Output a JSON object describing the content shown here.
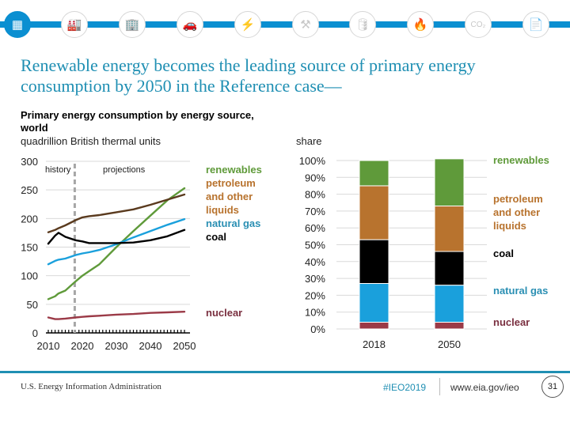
{
  "nav": {
    "icons": [
      {
        "name": "overview-icon",
        "glyph": "▦",
        "active": true
      },
      {
        "name": "industry-icon",
        "glyph": "🏭",
        "active": false
      },
      {
        "name": "buildings-icon",
        "glyph": "🏢",
        "active": false
      },
      {
        "name": "transportation-icon",
        "glyph": "🚗",
        "active": false
      },
      {
        "name": "electricity-icon",
        "glyph": "⚡",
        "active": false
      },
      {
        "name": "coal-mining-icon",
        "glyph": "⚒",
        "active": false
      },
      {
        "name": "petroleum-barrel-icon",
        "glyph": "🛢",
        "active": false
      },
      {
        "name": "natural-gas-flame-icon",
        "glyph": "🔥",
        "active": false
      },
      {
        "name": "co2-emissions-icon",
        "glyph": "CO₂",
        "active": false
      },
      {
        "name": "documents-icon",
        "glyph": "📄",
        "active": false
      }
    ]
  },
  "headline": "Renewable energy becomes the leading source of primary energy consumption by 2050 in the Reference case—",
  "colors": {
    "renewables": "#5f9a3a",
    "petroleum": "#b8732e",
    "petroleum_line": "#5a3a1e",
    "coal": "#000000",
    "natural_gas": "#1aa0dc",
    "natural_gas_label": "#2a8fb3",
    "nuclear": "#9b3a47",
    "nuclear_label": "#7a3040",
    "accent": "#1f8fb3"
  },
  "chart_data": [
    {
      "type": "line",
      "title": "Primary energy consumption by energy source, world",
      "ylabel": "quadrillion British thermal units",
      "xlabel": "",
      "xlim": [
        2010,
        2050
      ],
      "ylim": [
        0,
        300
      ],
      "yticks": [
        "0",
        "50",
        "100",
        "150",
        "200",
        "250",
        "300"
      ],
      "yticks_values": [
        0,
        50,
        100,
        150,
        200,
        250,
        300
      ],
      "xticks": [
        "2010",
        "2020",
        "2030",
        "2040",
        "2050"
      ],
      "xticks_values": [
        2010,
        2020,
        2030,
        2040,
        2050
      ],
      "grid": true,
      "history_divider_year": 2018,
      "annotations": [
        "history",
        "projections"
      ],
      "x": [
        2010,
        2012,
        2013,
        2015,
        2018,
        2020,
        2022,
        2025,
        2030,
        2035,
        2040,
        2045,
        2050
      ],
      "series": [
        {
          "name": "renewables",
          "key": "renewables",
          "values": [
            59,
            64,
            69,
            74,
            90,
            100,
            108,
            120,
            150,
            178,
            205,
            232,
            253
          ]
        },
        {
          "name": "petroleum and other liquids",
          "key": "petroleum_line",
          "values": [
            176,
            180,
            183,
            188,
            197,
            202,
            204,
            206,
            211,
            216,
            224,
            233,
            242
          ]
        },
        {
          "name": "natural gas",
          "key": "natural_gas",
          "values": [
            120,
            126,
            128,
            130,
            136,
            139,
            141,
            145,
            155,
            167,
            178,
            189,
            199
          ]
        },
        {
          "name": "coal",
          "key": "coal",
          "values": [
            156,
            170,
            175,
            168,
            162,
            160,
            157,
            157,
            157,
            158,
            162,
            169,
            180
          ]
        },
        {
          "name": "nuclear",
          "key": "nuclear",
          "values": [
            27,
            24,
            24,
            25,
            27,
            28,
            29,
            30,
            32,
            33,
            35,
            36,
            37
          ]
        }
      ]
    },
    {
      "type": "bar",
      "stacked": true,
      "title": "share",
      "categories": [
        "2018",
        "2050"
      ],
      "ylim": [
        0,
        100
      ],
      "yticks": [
        "0%",
        "10%",
        "20%",
        "30%",
        "40%",
        "50%",
        "60%",
        "70%",
        "80%",
        "90%",
        "100%"
      ],
      "yticks_values": [
        0,
        10,
        20,
        30,
        40,
        50,
        60,
        70,
        80,
        90,
        100
      ],
      "grid": true,
      "series": [
        {
          "name": "nuclear",
          "key": "nuclear",
          "values": [
            4,
            4
          ]
        },
        {
          "name": "natural gas",
          "key": "natural_gas",
          "values": [
            23,
            22
          ]
        },
        {
          "name": "coal",
          "key": "coal",
          "values": [
            26,
            20
          ]
        },
        {
          "name": "petroleum and other liquids",
          "key": "petroleum",
          "values": [
            32,
            27
          ]
        },
        {
          "name": "renewables",
          "key": "renewables",
          "values": [
            15,
            28
          ]
        }
      ]
    }
  ],
  "labels": {
    "mid": {
      "renewables": "renewables",
      "petroleum": [
        "petroleum",
        "and other",
        "liquids"
      ],
      "natural_gas": "natural gas",
      "coal": "coal",
      "nuclear": "nuclear"
    },
    "right": {
      "renewables": "renewables",
      "petroleum": [
        "petroleum",
        "and other",
        "liquids"
      ],
      "coal": "coal",
      "natural_gas": "natural gas",
      "nuclear": "nuclear"
    }
  },
  "footer": {
    "source": "U.S. Energy Information Administration",
    "hashtag": "#IEO2019",
    "url": "www.eia.gov/ieo",
    "page": "31"
  }
}
